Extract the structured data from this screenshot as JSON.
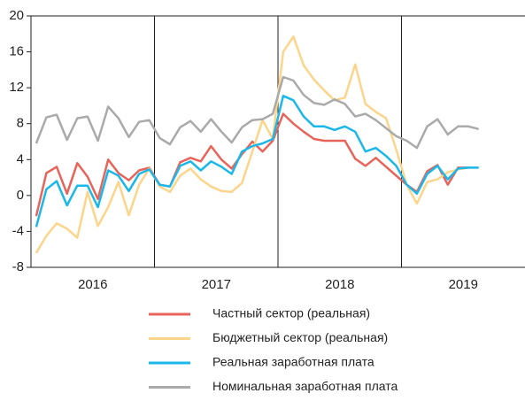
{
  "chart_data": {
    "type": "line",
    "x": [
      2016.042,
      2016.125,
      2016.208,
      2016.292,
      2016.375,
      2016.458,
      2016.542,
      2016.625,
      2016.708,
      2016.792,
      2016.875,
      2016.958,
      2017.042,
      2017.125,
      2017.208,
      2017.292,
      2017.375,
      2017.458,
      2017.542,
      2017.625,
      2017.708,
      2017.792,
      2017.875,
      2017.958,
      2018.042,
      2018.125,
      2018.208,
      2018.292,
      2018.375,
      2018.458,
      2018.542,
      2018.625,
      2018.708,
      2018.792,
      2018.875,
      2018.958,
      2019.042,
      2019.125,
      2019.208,
      2019.292,
      2019.375,
      2019.458,
      2019.542,
      2019.625
    ],
    "categories": [
      "2016",
      "2017",
      "2018",
      "2019"
    ],
    "xlim": [
      2016,
      2020
    ],
    "xticks": [
      2017,
      2018,
      2019
    ],
    "ylim": [
      -8,
      20
    ],
    "yticks": [
      20,
      16,
      12,
      8,
      4,
      0,
      -4,
      -8
    ],
    "series": [
      {
        "name": "Частный сектор (реальная)",
        "color": "#e8645a",
        "values": [
          -2.3,
          2.5,
          3.2,
          0.2,
          3.6,
          2.1,
          -0.4,
          4.0,
          2.5,
          1.7,
          2.8,
          3.1,
          1.2,
          1.0,
          3.7,
          4.2,
          3.8,
          5.5,
          4.0,
          3.0,
          4.6,
          6.0,
          4.9,
          6.1,
          9.1,
          8.0,
          7.1,
          6.3,
          6.1,
          6.1,
          6.1,
          4.1,
          3.3,
          4.2,
          3.2,
          2.2,
          1.2,
          0.4,
          2.7,
          3.4,
          1.2,
          3.1,
          3.1,
          null
        ]
      },
      {
        "name": "Бюджетный сектор (реальная)",
        "color": "#fdd58a",
        "values": [
          -6.4,
          -4.5,
          -3.1,
          -3.7,
          -4.7,
          0.4,
          -3.4,
          -1.3,
          1.5,
          -2.2,
          1.2,
          3.0,
          1.0,
          0.4,
          2.2,
          3.0,
          1.8,
          1.0,
          0.5,
          0.4,
          1.4,
          4.9,
          8.4,
          6.3,
          16.0,
          17.7,
          14.5,
          12.9,
          11.7,
          10.6,
          10.9,
          14.6,
          10.2,
          9.3,
          8.6,
          5.1,
          1.2,
          -0.9,
          1.5,
          1.8,
          2.6,
          2.9,
          3.1,
          null
        ]
      },
      {
        "name": "Реальная заработная плата",
        "color": "#1ab8e8",
        "values": [
          -3.5,
          0.7,
          1.6,
          -1.1,
          1.1,
          1.1,
          -1.3,
          2.8,
          2.2,
          0.5,
          2.4,
          2.9,
          1.2,
          1.0,
          3.3,
          3.8,
          2.8,
          3.8,
          3.2,
          2.4,
          4.9,
          5.5,
          5.8,
          6.3,
          11.1,
          10.6,
          8.8,
          7.7,
          7.7,
          7.3,
          7.7,
          7.1,
          4.9,
          5.3,
          4.4,
          3.3,
          1.2,
          0.2,
          2.4,
          3.3,
          1.8,
          3.0,
          3.1,
          3.1
        ]
      },
      {
        "name": "Номинальная заработная плата",
        "color": "#aaaaaa",
        "values": [
          5.8,
          8.7,
          9.0,
          6.2,
          8.6,
          8.8,
          6.1,
          9.9,
          8.6,
          6.5,
          8.2,
          8.4,
          6.4,
          5.7,
          7.6,
          8.3,
          7.1,
          8.5,
          7.1,
          5.9,
          7.6,
          8.4,
          8.5,
          9.1,
          13.2,
          12.8,
          11.2,
          10.3,
          10.1,
          10.7,
          10.2,
          8.8,
          9.1,
          8.4,
          7.5,
          6.6,
          6.1,
          5.3,
          7.7,
          8.5,
          6.8,
          7.7,
          7.7,
          7.4
        ]
      }
    ]
  }
}
